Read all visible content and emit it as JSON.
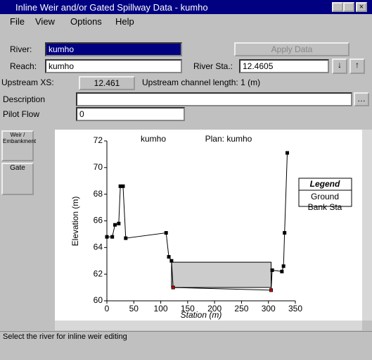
{
  "window": {
    "title": "Inline Weir and/or Gated Spillway Data - kumho"
  },
  "menu": [
    "File",
    "View",
    "Options",
    "Help"
  ],
  "form": {
    "river_label": "River:",
    "river_value": "kumho",
    "apply_button": "Apply Data",
    "reach_label": "Reach:",
    "reach_value": "kumho",
    "river_sta_label": "River Sta.:",
    "river_sta_value": "12.4605",
    "upstream_xs_label": "Upstream XS:",
    "upstream_xs_value": "12.461",
    "upstream_length": "Upstream channel length: 1 (m)",
    "description_label": "Description",
    "pilot_flow_label": "Pilot Flow",
    "pilot_flow_value": "0"
  },
  "side_buttons": [
    "Weir / Embankment",
    "Gate"
  ],
  "chart_data": {
    "type": "line",
    "title": "kumho",
    "subtitle": "Plan: kumho",
    "xlabel": "Station (m)",
    "ylabel": "Elevation (m)",
    "xlim": [
      0,
      350
    ],
    "xticks": [
      0,
      50,
      100,
      150,
      200,
      250,
      300,
      350
    ],
    "ylim": [
      60,
      72
    ],
    "yticks": [
      60,
      62,
      64,
      66,
      68,
      70,
      72
    ],
    "legend_title": "Legend",
    "series": [
      {
        "name": "Ground",
        "color": "#000000",
        "x": [
          0,
          10,
          15,
          22,
          25,
          30,
          35,
          110,
          115,
          120,
          123,
          305,
          307,
          325,
          328,
          330,
          335
        ],
        "values": [
          64.8,
          64.8,
          65.7,
          65.8,
          68.6,
          68.6,
          64.7,
          65.1,
          63.3,
          63.0,
          61.0,
          60.8,
          62.3,
          62.2,
          62.6,
          65.1,
          71.1
        ]
      },
      {
        "name": "Bank Sta",
        "color": "#000000",
        "x": [
          123,
          305
        ],
        "values": [
          61.0,
          60.8
        ]
      }
    ],
    "weir": {
      "x_start": 120,
      "x_end": 305,
      "top": 62.9,
      "bottom": 61.0
    }
  },
  "status": "Select the river for inline weir editing"
}
